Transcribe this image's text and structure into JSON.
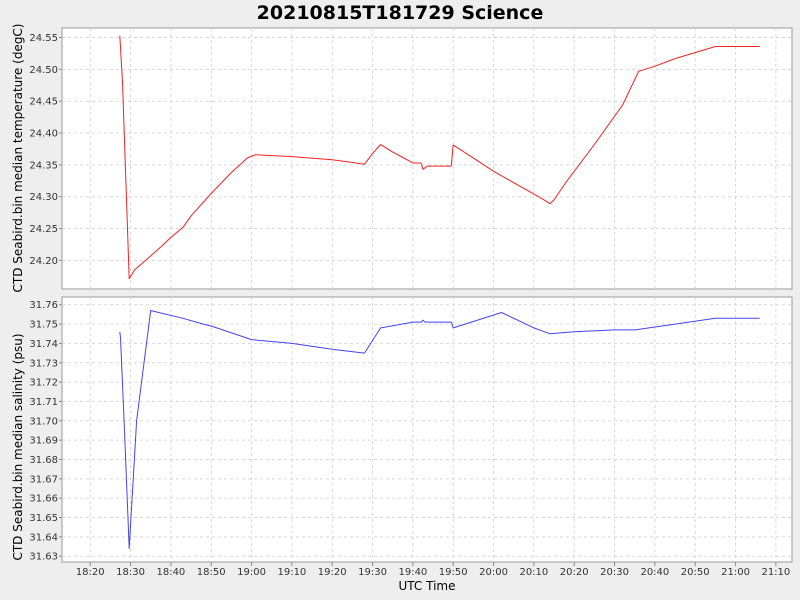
{
  "chart_data": [
    {
      "type": "line",
      "title": "20210815T181729 Science",
      "ylabel": "CTD Seabird.bin median temperature (degC)",
      "xlabel": "UTC Time",
      "x_ticks": [
        "18:20",
        "18:30",
        "18:40",
        "18:50",
        "19:00",
        "19:10",
        "19:20",
        "19:30",
        "19:40",
        "19:50",
        "20:00",
        "20:10",
        "20:20",
        "20:30",
        "20:40",
        "20:50",
        "21:00",
        "21:10"
      ],
      "y_ticks": [
        "24.20",
        "24.25",
        "24.30",
        "24.35",
        "24.40",
        "24.45",
        "24.50",
        "24.55"
      ],
      "xlim": [
        "18:13",
        "21:14"
      ],
      "ylim": [
        24.155,
        24.565
      ],
      "grid": true,
      "color": "#ee2222",
      "series": [
        {
          "x": [
            "18:27:20",
            "18:28:00",
            "18:29:40",
            "18:31:00",
            "18:35:00",
            "18:38:00",
            "18:40:00",
            "18:43:00",
            "18:45:00",
            "18:50:00",
            "18:55:00",
            "18:59:00",
            "19:01:00",
            "19:10:00",
            "19:20:00",
            "19:26:00",
            "19:28:00",
            "19:30:00",
            "19:32:00",
            "19:35:00",
            "19:38:00",
            "19:40:00",
            "19:42:00",
            "19:42:30",
            "19:43:30",
            "19:49:30",
            "19:50:00",
            "19:52:00",
            "20:00:00",
            "20:05:00",
            "20:12:00",
            "20:14:00",
            "20:15:00",
            "20:18:00",
            "20:25:00",
            "20:32:00",
            "20:36:00",
            "20:40:00",
            "20:45:00",
            "20:55:00",
            "21:00:00",
            "21:06:00"
          ],
          "y": [
            24.553,
            24.48,
            24.171,
            24.185,
            24.207,
            24.224,
            24.236,
            24.252,
            24.27,
            24.305,
            24.338,
            24.361,
            24.366,
            24.363,
            24.358,
            24.353,
            24.351,
            24.368,
            24.382,
            24.37,
            24.36,
            24.353,
            24.353,
            24.343,
            24.348,
            24.348,
            24.381,
            24.373,
            24.34,
            24.322,
            24.297,
            24.289,
            24.295,
            24.323,
            24.382,
            24.444,
            24.497,
            24.505,
            24.517,
            24.536,
            24.536,
            24.536
          ]
        }
      ]
    },
    {
      "type": "line",
      "ylabel": "CTD Seabird.bin median salinity (psu)",
      "xlabel": "UTC Time",
      "x_ticks": [
        "18:20",
        "18:30",
        "18:40",
        "18:50",
        "19:00",
        "19:10",
        "19:20",
        "19:30",
        "19:40",
        "19:50",
        "20:00",
        "20:10",
        "20:20",
        "20:30",
        "20:40",
        "20:50",
        "21:00",
        "21:10"
      ],
      "y_ticks": [
        "31.63",
        "31.64",
        "31.65",
        "31.66",
        "31.67",
        "31.68",
        "31.69",
        "31.70",
        "31.71",
        "31.72",
        "31.73",
        "31.74",
        "31.75",
        "31.76"
      ],
      "xlim": [
        "18:13",
        "21:14"
      ],
      "ylim": [
        31.627,
        31.764
      ],
      "grid": true,
      "color": "#4444ee",
      "series": [
        {
          "x": [
            "18:27:20",
            "18:27:30",
            "18:28:30",
            "18:29:40",
            "18:31:30",
            "18:35:00",
            "18:37:00",
            "18:43:00",
            "18:48:00",
            "18:50:00",
            "19:00:00",
            "19:10:00",
            "19:20:00",
            "19:28:00",
            "19:32:00",
            "19:40:00",
            "19:42:00",
            "19:42:30",
            "19:43:00",
            "19:49:30",
            "19:50:00",
            "20:02:00",
            "20:10:00",
            "20:14:00",
            "20:20:00",
            "20:30:00",
            "20:35:00",
            "20:45:00",
            "20:55:00",
            "21:00:00",
            "21:06:00"
          ],
          "y": [
            31.746,
            31.743,
            31.695,
            31.634,
            31.7,
            31.757,
            31.756,
            31.753,
            31.75,
            31.749,
            31.742,
            31.74,
            31.737,
            31.735,
            31.748,
            31.751,
            31.751,
            31.752,
            31.751,
            31.751,
            31.748,
            31.756,
            31.748,
            31.745,
            31.746,
            31.747,
            31.747,
            31.75,
            31.753,
            31.753,
            31.753
          ]
        }
      ]
    }
  ]
}
